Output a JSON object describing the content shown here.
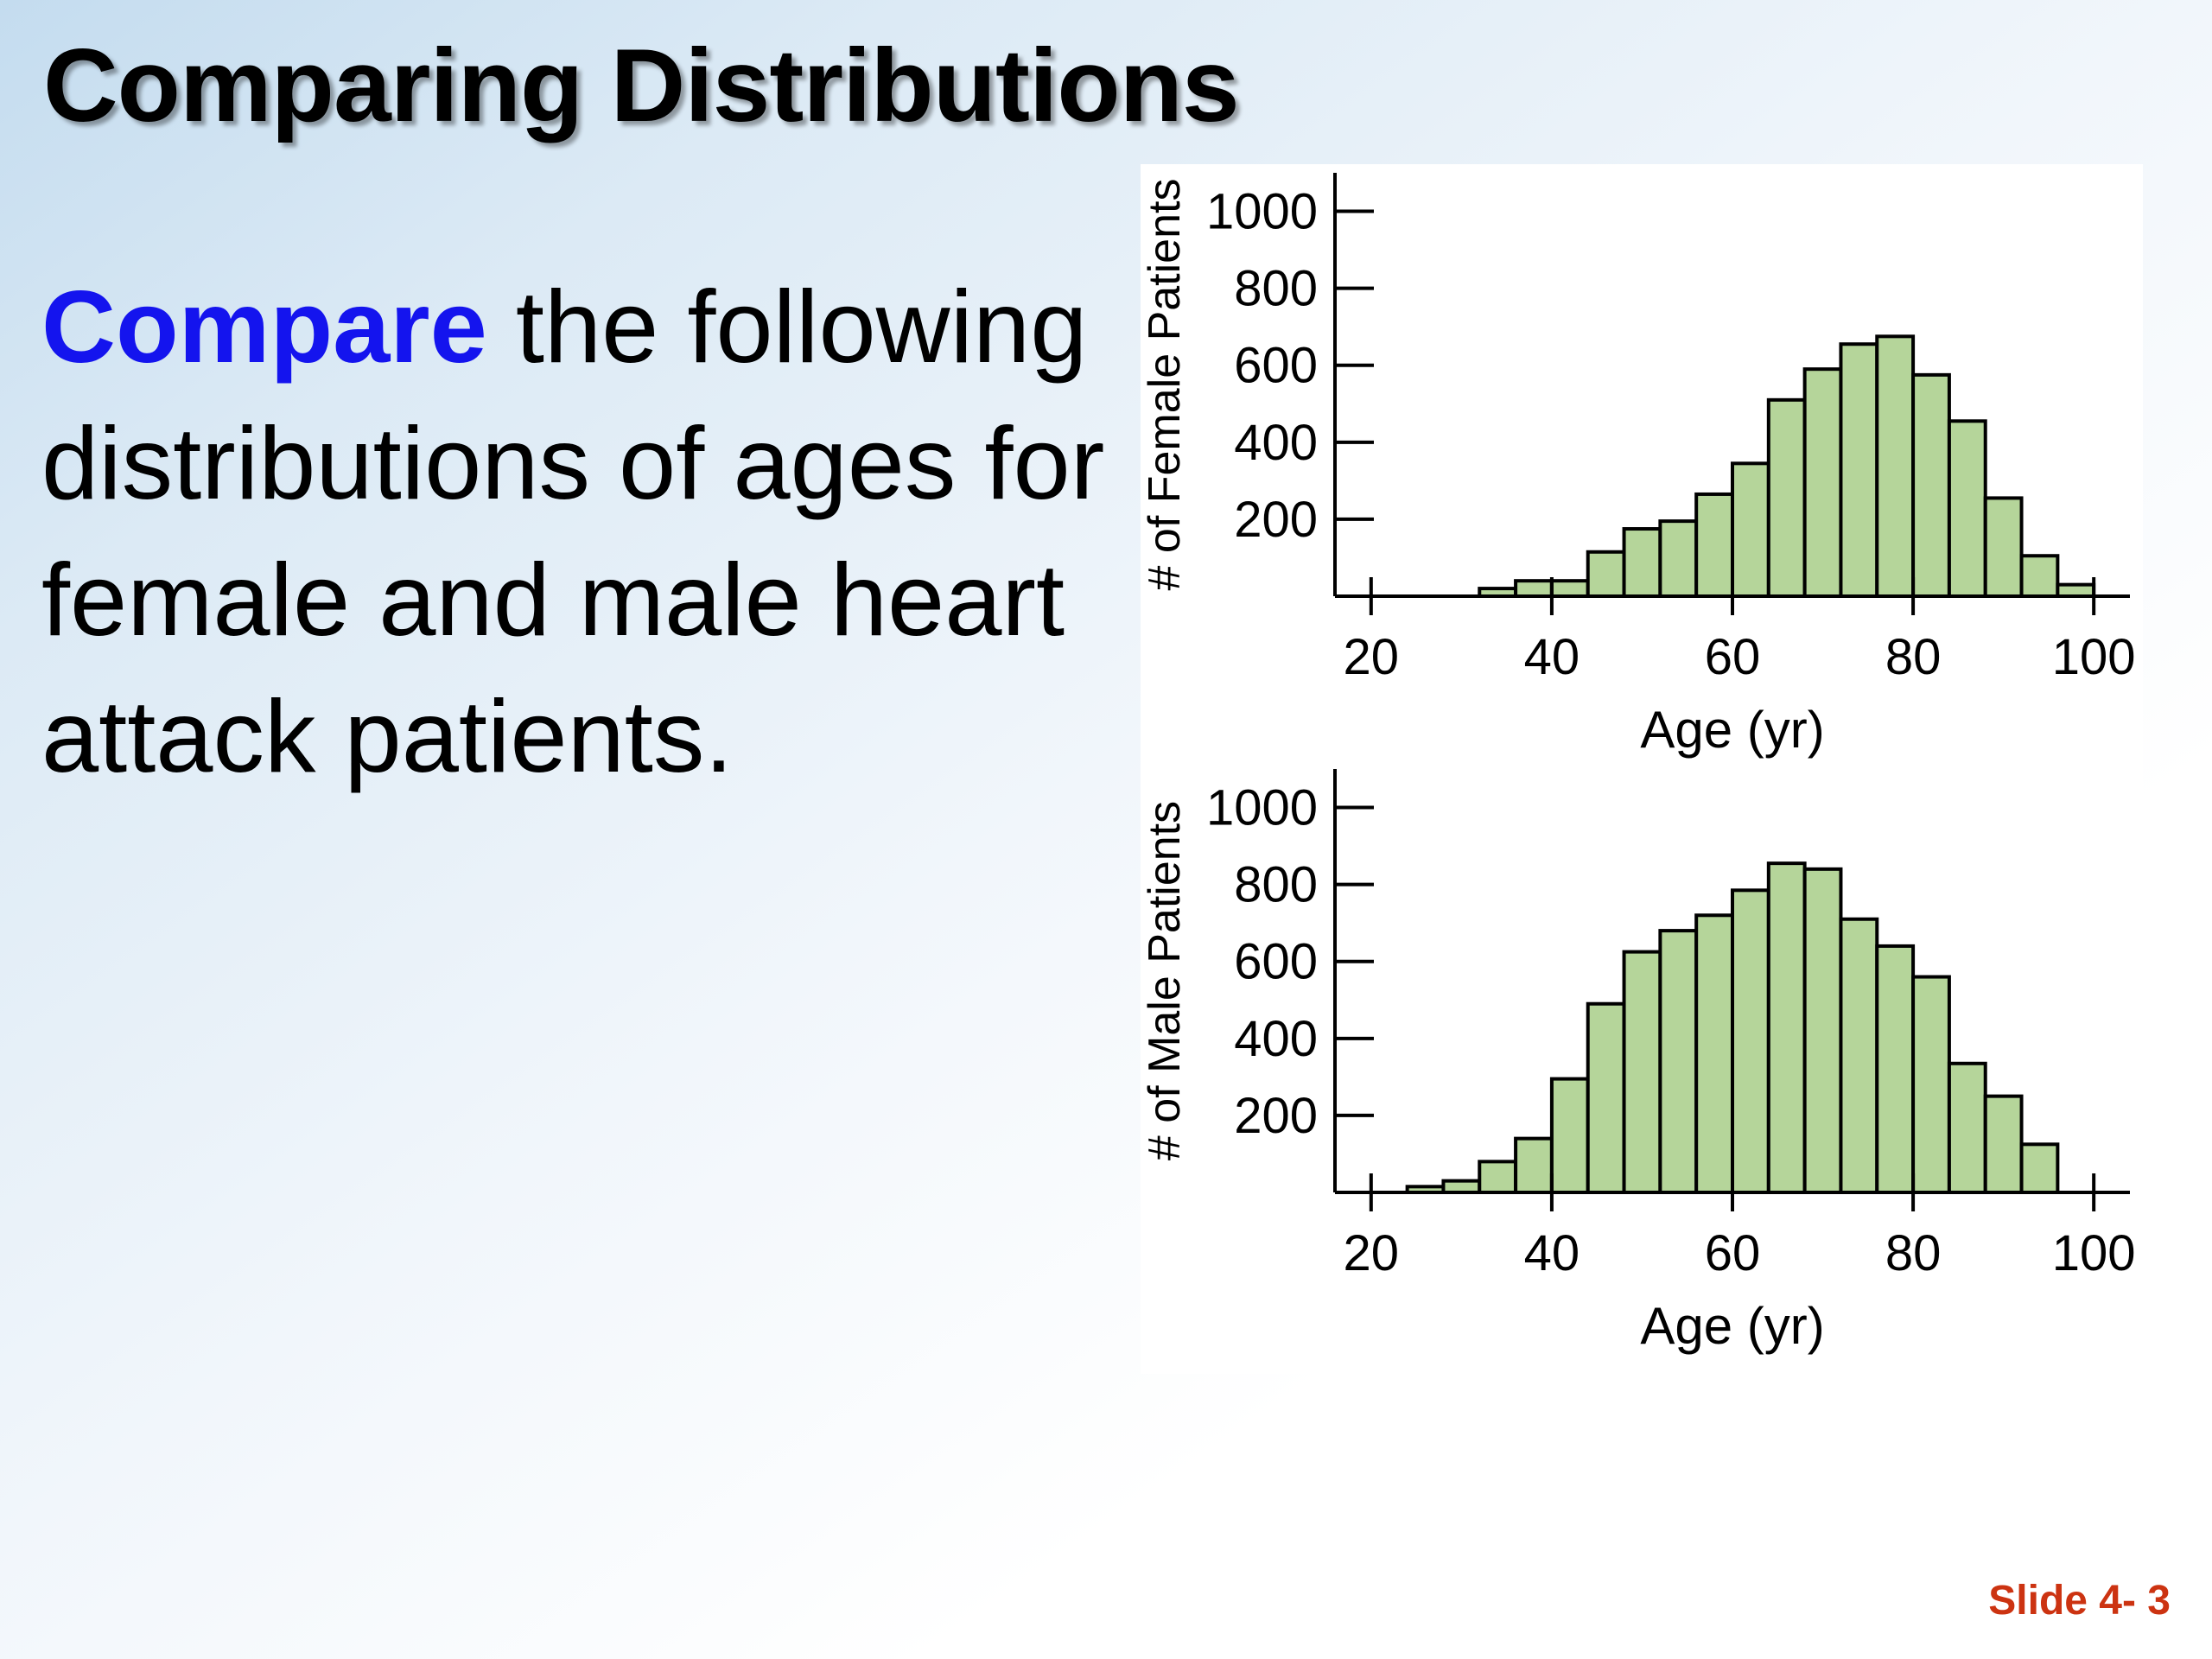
{
  "slide": {
    "title": "Comparing Distributions",
    "body": {
      "emphasis": "Compare",
      "rest": " the following distributions of ages for female and male heart attack patients."
    },
    "slide_number": "Slide 4- 3"
  },
  "colors": {
    "bar_fill": "#b5d59a",
    "emphasis": "#1414ee",
    "slide_number": "#cc3311"
  },
  "chart_data": [
    {
      "type": "bar",
      "title": "",
      "xlabel": "Age (yr)",
      "ylabel": "# of Female Patients",
      "bin_width": 4,
      "bin_starts": [
        20,
        24,
        28,
        32,
        36,
        40,
        44,
        48,
        52,
        56,
        60,
        64,
        68,
        72,
        76,
        80,
        84,
        88,
        92,
        96,
        100
      ],
      "values": [
        0,
        0,
        0,
        20,
        40,
        40,
        115,
        175,
        195,
        265,
        345,
        510,
        590,
        655,
        675,
        575,
        455,
        255,
        105,
        30,
        0
      ],
      "xlim": [
        16,
        104
      ],
      "ylim": [
        0,
        1100
      ],
      "x_ticks": [
        20,
        40,
        60,
        80,
        100
      ],
      "y_ticks": [
        200,
        400,
        600,
        800,
        1000
      ],
      "grid": false
    },
    {
      "type": "bar",
      "title": "",
      "xlabel": "Age (yr)",
      "ylabel": "# of Male Patients",
      "bin_width": 4,
      "bin_starts": [
        20,
        24,
        28,
        32,
        36,
        40,
        44,
        48,
        52,
        56,
        60,
        64,
        68,
        72,
        76,
        80,
        84,
        88,
        92,
        96
      ],
      "values": [
        0,
        15,
        30,
        80,
        140,
        295,
        490,
        625,
        680,
        720,
        785,
        855,
        840,
        710,
        640,
        560,
        335,
        250,
        125,
        0
      ],
      "xlim": [
        16,
        104
      ],
      "ylim": [
        0,
        1100
      ],
      "x_ticks": [
        20,
        40,
        60,
        80,
        100
      ],
      "y_ticks": [
        200,
        400,
        600,
        800,
        1000
      ],
      "grid": false
    }
  ]
}
